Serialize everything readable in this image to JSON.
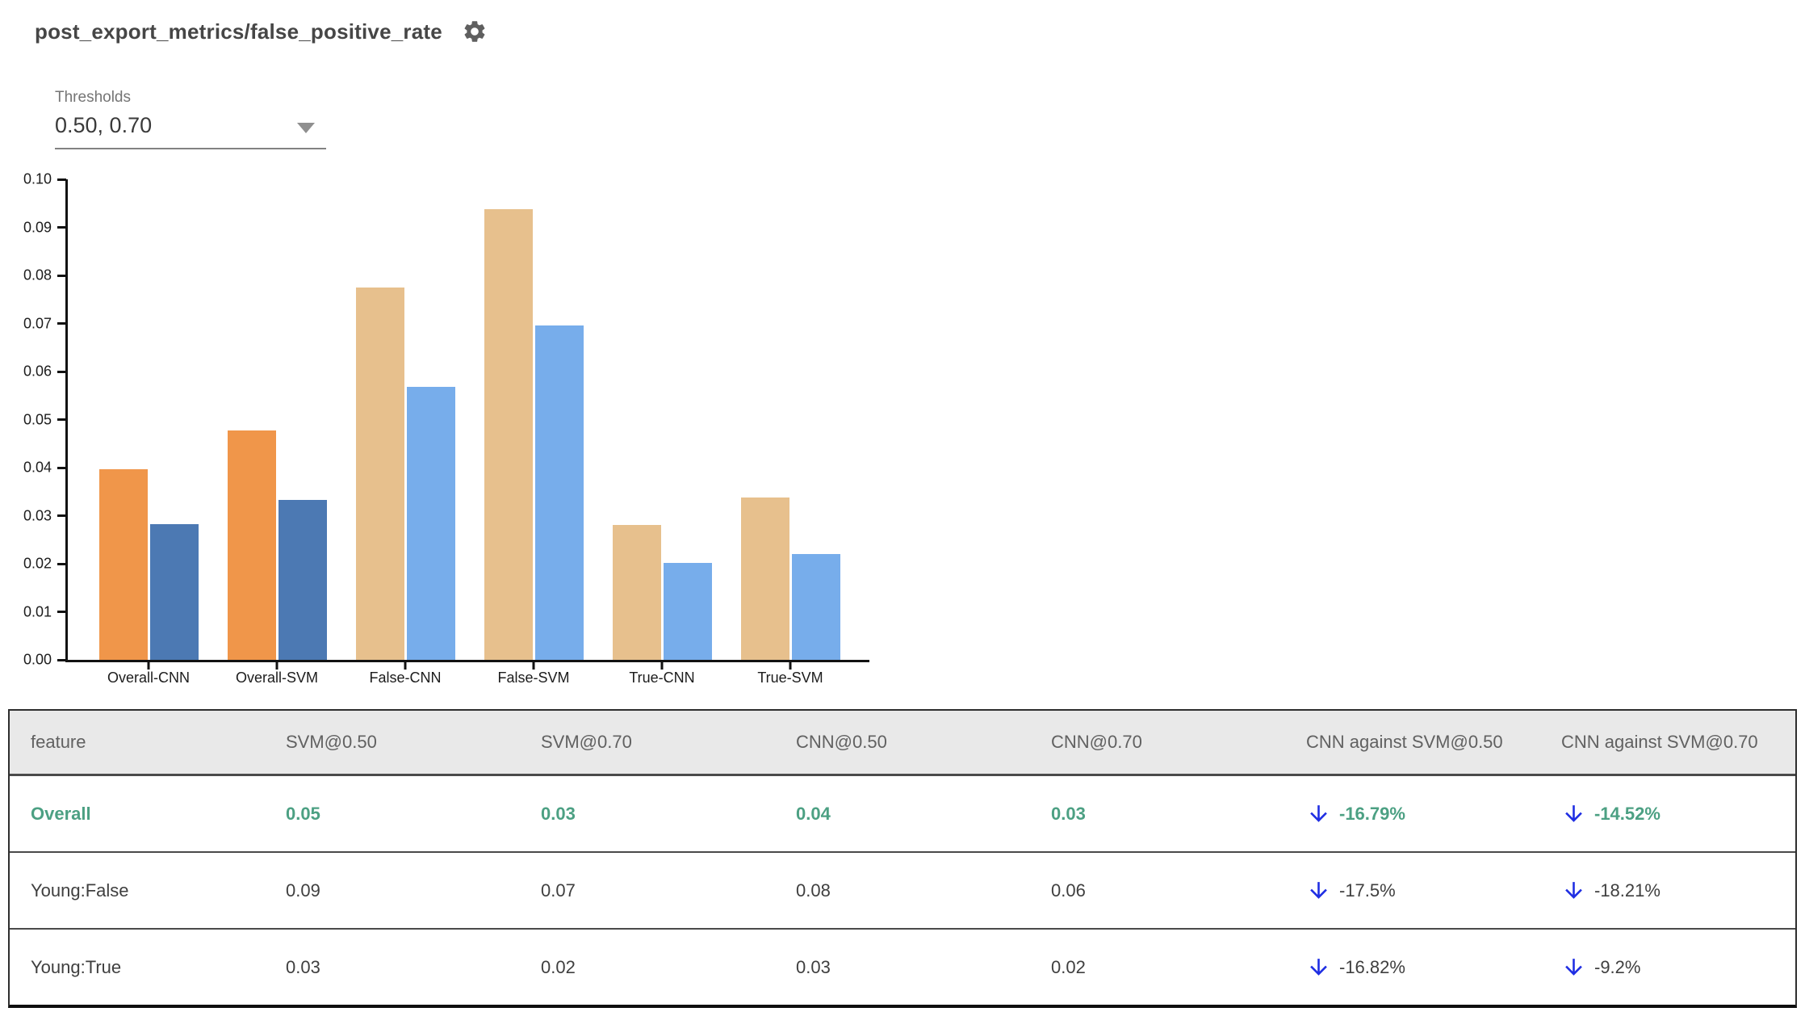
{
  "header": {
    "title": "post_export_metrics/false_positive_rate"
  },
  "controls": {
    "thresholds_label": "Thresholds",
    "thresholds_value": "0.50, 0.70"
  },
  "chart_data": {
    "type": "bar",
    "categories": [
      "Overall-CNN",
      "Overall-SVM",
      "False-CNN",
      "False-SVM",
      "True-CNN",
      "True-SVM"
    ],
    "series": [
      {
        "name": "threshold 0.50",
        "values": [
          0.0397,
          0.0477,
          0.0774,
          0.0938,
          0.028,
          0.0337
        ],
        "colors": [
          "#F0964A",
          "#F0964A",
          "#E7C08D",
          "#E7C08D",
          "#E7C08D",
          "#E7C08D"
        ]
      },
      {
        "name": "threshold 0.70",
        "values": [
          0.0283,
          0.0332,
          0.0568,
          0.0695,
          0.0201,
          0.0221
        ],
        "colors": [
          "#4C79B3",
          "#4C79B3",
          "#77ADEB",
          "#77ADEB",
          "#77ADEB",
          "#77ADEB"
        ]
      }
    ],
    "ylim": [
      0,
      0.1
    ],
    "y_ticks": [
      "0.00",
      "0.01",
      "0.02",
      "0.03",
      "0.04",
      "0.05",
      "0.06",
      "0.07",
      "0.08",
      "0.09",
      "0.10"
    ],
    "grid": false,
    "legend": "none"
  },
  "table": {
    "columns": [
      "feature",
      "SVM@0.50",
      "SVM@0.70",
      "CNN@0.50",
      "CNN@0.70",
      "CNN against SVM@0.50",
      "CNN against SVM@0.70"
    ],
    "rows": [
      {
        "feature": "Overall",
        "values": [
          "0.05",
          "0.03",
          "0.04",
          "0.03"
        ],
        "deltas": [
          "-16.79%",
          "-14.52%"
        ],
        "direction": "down",
        "highlight": true
      },
      {
        "feature": "Young:False",
        "values": [
          "0.09",
          "0.07",
          "0.08",
          "0.06"
        ],
        "deltas": [
          "-17.5%",
          "-18.21%"
        ],
        "direction": "down",
        "highlight": false
      },
      {
        "feature": "Young:True",
        "values": [
          "0.03",
          "0.02",
          "0.03",
          "0.02"
        ],
        "deltas": [
          "-16.82%",
          "-9.2%"
        ],
        "direction": "down",
        "highlight": false
      }
    ]
  },
  "colors": {
    "highlight_green": "#4CA083",
    "arrow_blue": "#1F2EE3",
    "header_bg": "#E9E9E9",
    "header_text": "#616161",
    "body_text": "#3F3F3F",
    "axis": "#121212"
  }
}
